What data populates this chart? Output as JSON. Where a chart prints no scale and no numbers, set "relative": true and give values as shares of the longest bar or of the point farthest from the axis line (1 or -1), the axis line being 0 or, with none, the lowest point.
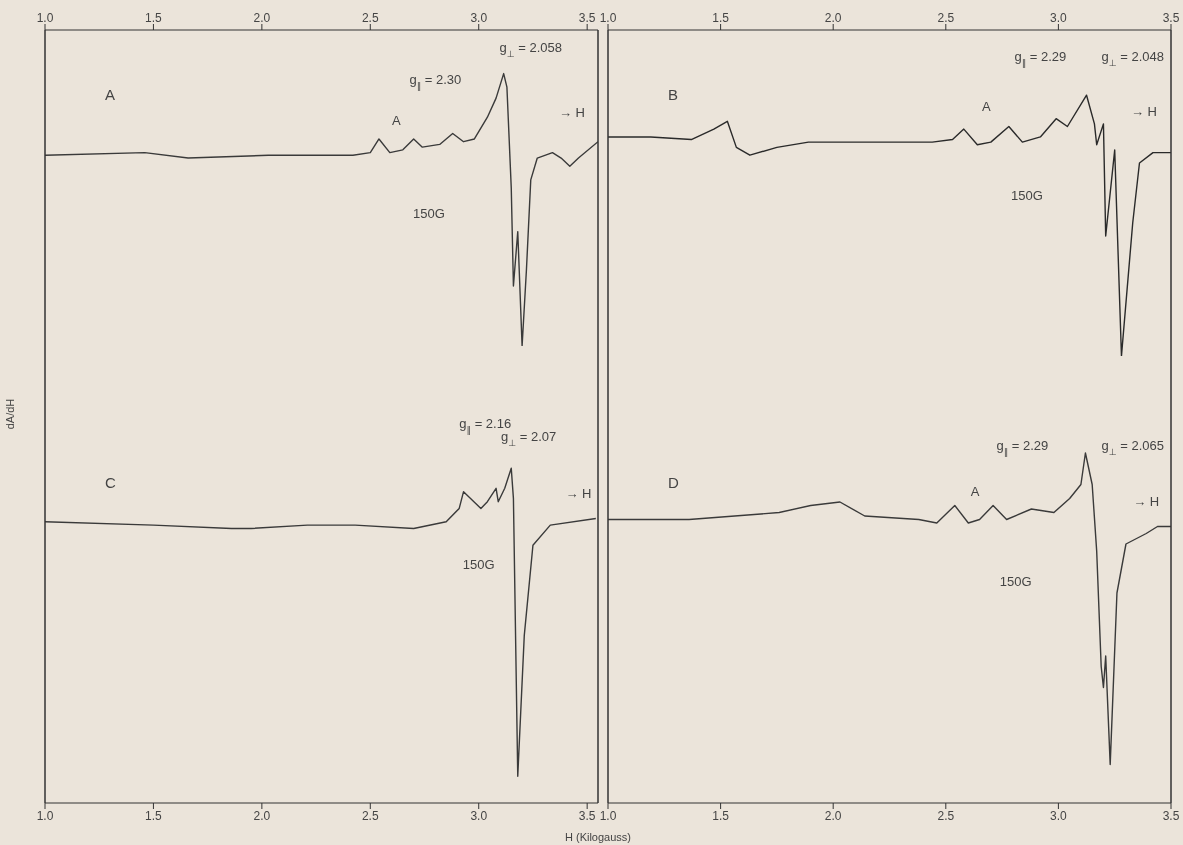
{
  "chart_data": [
    {
      "type": "line",
      "title": "A",
      "relative": true,
      "color": "#3a3a3a",
      "xlim": [
        1.0,
        3.55
      ],
      "xticks": [
        {
          "value": 1,
          "label": "1.0"
        },
        1.5,
        {
          "value": 2,
          "label": "2.0"
        },
        2.5,
        {
          "value": 3,
          "label": "3.0"
        },
        3.5
      ],
      "x": [
        1.0,
        1.46,
        1.66,
        2.03,
        2.42,
        2.5,
        2.54,
        2.59,
        2.65,
        2.7,
        2.74,
        2.82,
        2.88,
        2.93,
        2.98,
        3.04,
        3.08,
        3.115,
        3.13,
        3.15,
        3.16,
        3.18,
        3.2,
        3.22,
        3.24,
        3.27,
        3.34,
        3.38,
        3.42,
        3.46,
        3.55
      ],
      "values": [
        0.7,
        0.71,
        0.69,
        0.7,
        0.7,
        0.71,
        0.76,
        0.71,
        0.72,
        0.76,
        0.73,
        0.74,
        0.78,
        0.75,
        0.76,
        0.84,
        0.91,
        1.0,
        0.95,
        0.58,
        0.22,
        0.42,
        0.0,
        0.28,
        0.61,
        0.69,
        0.71,
        0.69,
        0.66,
        0.69,
        0.75
      ],
      "annotations": [
        "g$_{∥}$ = 2.30",
        "g$_{⊥}$ = 2.058",
        "A",
        "150G",
        "→ H"
      ]
    },
    {
      "type": "line",
      "title": "B",
      "relative": true,
      "color": "#2a2a2a",
      "xlim": [
        1.0,
        3.5
      ],
      "xticks": [
        {
          "value": 1,
          "label": "1.0"
        },
        1.5,
        {
          "value": 2,
          "label": "2.0"
        },
        2.5,
        {
          "value": 3,
          "label": "3.0"
        },
        3.5
      ],
      "x": [
        1.0,
        1.19,
        1.37,
        1.47,
        1.53,
        1.57,
        1.63,
        1.75,
        1.89,
        2.15,
        2.44,
        2.53,
        2.58,
        2.64,
        2.7,
        2.78,
        2.84,
        2.92,
        2.99,
        3.04,
        3.125,
        3.16,
        3.17,
        3.2,
        3.21,
        3.25,
        3.28,
        3.33,
        3.36,
        3.42,
        3.5
      ],
      "values": [
        0.84,
        0.84,
        0.83,
        0.87,
        0.9,
        0.8,
        0.77,
        0.8,
        0.82,
        0.82,
        0.82,
        0.83,
        0.87,
        0.81,
        0.82,
        0.88,
        0.82,
        0.84,
        0.91,
        0.88,
        1.0,
        0.89,
        0.81,
        0.89,
        0.46,
        0.79,
        0.0,
        0.51,
        0.74,
        0.78,
        0.78
      ],
      "annotations": [
        "g$_{∥}$ = 2.29",
        "g$_{⊥}$ = 2.048",
        "A",
        "150G",
        "→ H"
      ]
    },
    {
      "type": "line",
      "title": "C",
      "relative": true,
      "color": "#3a3a3a",
      "ylabel": "dA/dH",
      "xlabel": "H (Kilogauss)",
      "xlim": [
        1.0,
        3.55
      ],
      "xticks": [
        {
          "value": 1,
          "label": "1.0"
        },
        1.5,
        {
          "value": 2,
          "label": "2.0"
        },
        2.5,
        {
          "value": 3,
          "label": "3.0"
        },
        3.5
      ],
      "x": [
        1.0,
        1.5,
        1.86,
        1.95,
        2.21,
        2.43,
        2.7,
        2.85,
        2.91,
        2.93,
        3.01,
        3.04,
        3.08,
        3.09,
        3.12,
        3.15,
        3.16,
        3.18,
        3.21,
        3.25,
        3.33,
        3.54
      ],
      "values": [
        0.84,
        0.83,
        0.82,
        0.82,
        0.83,
        0.83,
        0.82,
        0.84,
        0.88,
        0.93,
        0.88,
        0.9,
        0.94,
        0.9,
        0.94,
        1.0,
        0.91,
        0.08,
        0.5,
        0.77,
        0.83,
        0.85
      ],
      "annotations": [
        "g$_{∥}$ = 2.16",
        "g$_{⊥}$ = 2.07",
        "150G",
        "→ H"
      ]
    },
    {
      "type": "line",
      "title": "D",
      "relative": true,
      "color": "#3a3a3a",
      "xlim": [
        1.0,
        3.5
      ],
      "xticks": [
        {
          "value": 1,
          "label": "1.0"
        },
        1.5,
        {
          "value": 2,
          "label": "2.0"
        },
        2.5,
        {
          "value": 3,
          "label": "3.0"
        },
        3.5
      ],
      "x": [
        1.0,
        1.36,
        1.76,
        1.9,
        2.03,
        2.14,
        2.38,
        2.46,
        2.54,
        2.6,
        2.65,
        2.71,
        2.77,
        2.88,
        2.98,
        3.05,
        3.1,
        3.12,
        3.15,
        3.17,
        3.19,
        3.2,
        3.21,
        3.23,
        3.26,
        3.3,
        3.39,
        3.44,
        3.5
      ],
      "values": [
        0.81,
        0.81,
        0.83,
        0.85,
        0.86,
        0.82,
        0.81,
        0.8,
        0.85,
        0.8,
        0.81,
        0.85,
        0.81,
        0.84,
        0.83,
        0.87,
        0.91,
        1.0,
        0.91,
        0.72,
        0.39,
        0.33,
        0.42,
        0.11,
        0.6,
        0.74,
        0.77,
        0.79,
        0.79
      ],
      "annotations": [
        "g$_{∥}$ = 2.29",
        "g$_{⊥}$ = 2.065",
        "A",
        "150G",
        "→ H"
      ]
    }
  ]
}
